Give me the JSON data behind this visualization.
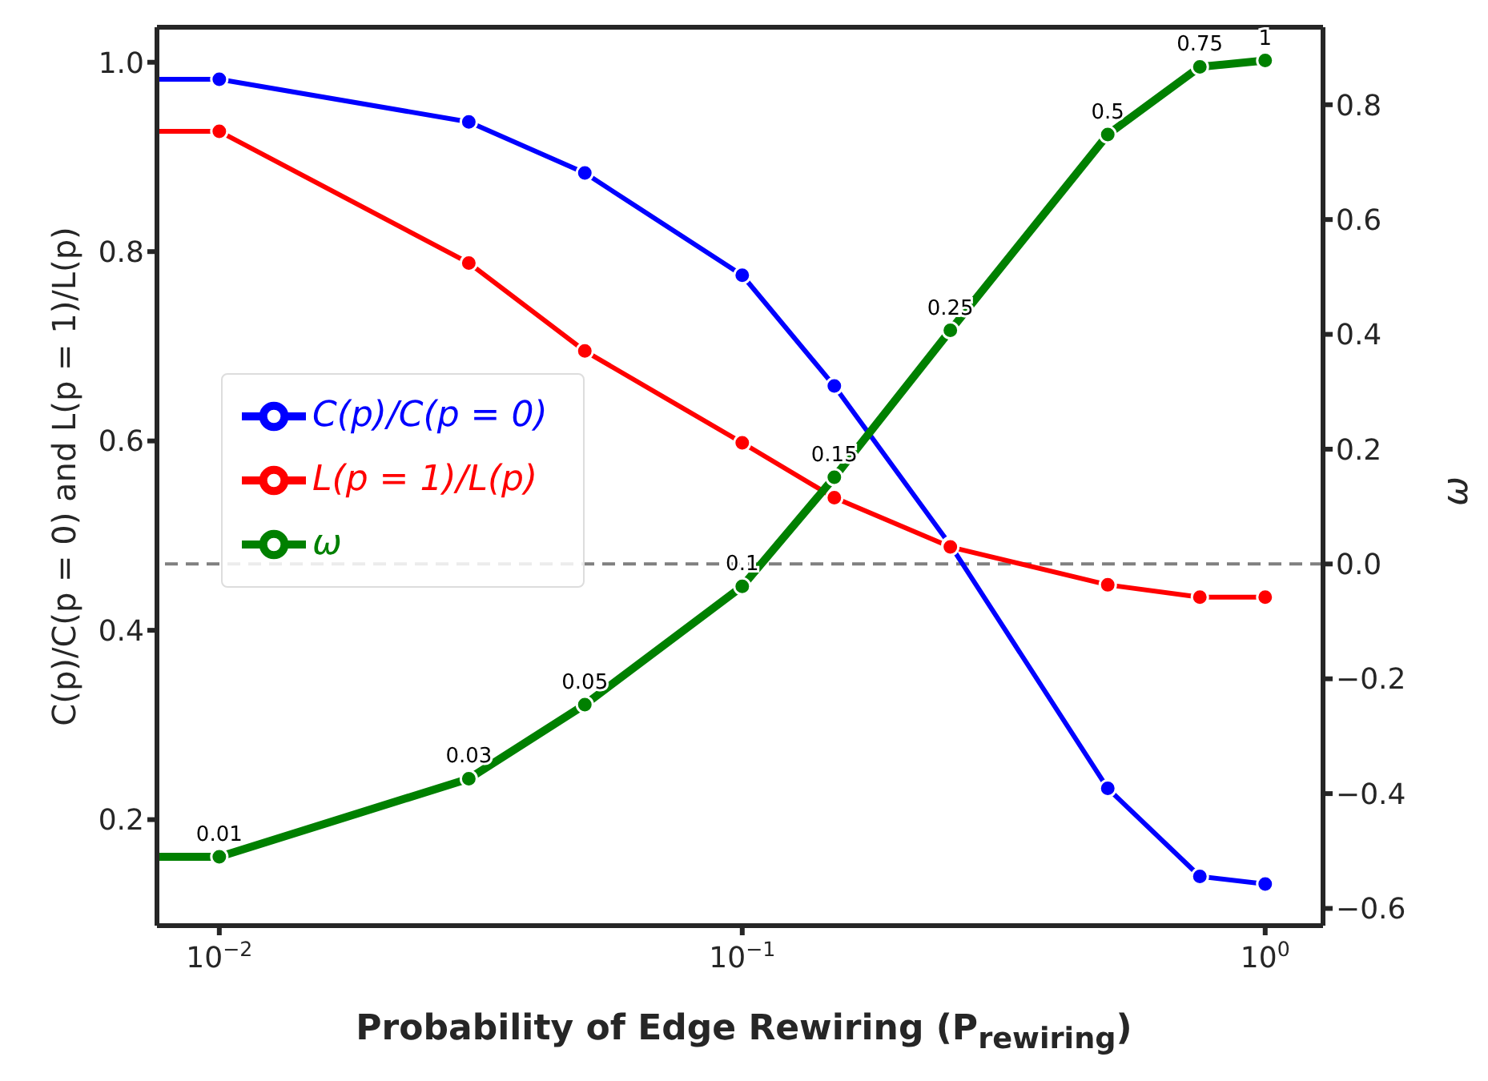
{
  "chart_data": {
    "type": "line",
    "xlabel": "Probability of Edge Rewiring (P$_{rewiring}$)",
    "ylabel": "C(p)/C(p = 0) and L(p = 1)/L(p)",
    "y2label": "ω",
    "x": [
      0.0076,
      0.01,
      0.03,
      0.05,
      0.1,
      0.15,
      0.25,
      0.5,
      0.75,
      1
    ],
    "series": [
      {
        "name": "C(p)/C(p = 0)",
        "color": "#0000ff",
        "values": [
          0.982,
          0.982,
          0.937,
          0.883,
          0.775,
          0.658,
          0.49,
          0.233,
          0.14,
          0.132
        ]
      },
      {
        "name": "L(p = 1)/L(p)",
        "color": "#ff0000",
        "values": [
          0.927,
          0.927,
          0.788,
          0.695,
          0.598,
          0.54,
          0.488,
          0.448,
          0.435,
          0.435
        ]
      },
      {
        "name": "ω",
        "color": "#008000",
        "axis": "y2",
        "values": [
          -0.51,
          -0.51,
          -0.374,
          -0.245,
          -0.039,
          0.151,
          0.407,
          0.748,
          0.866,
          0.877
        ]
      }
    ],
    "annotations": [
      "0.01",
      "0.03",
      "0.05",
      "0.1",
      "0.15",
      "0.25",
      "0.5",
      "0.75",
      "1"
    ],
    "log": "x",
    "xlim": [
      0.0076,
      1.29
    ],
    "xticks": [
      {
        "value": 0.01,
        "label": "10$^{−2}$"
      },
      {
        "value": 0.1,
        "label": "10$^{−1}$"
      },
      {
        "value": 1,
        "label": "10$^{0}$"
      }
    ],
    "ylim": [
      0.088,
      1.037
    ],
    "yticks": [
      0.2,
      0.4,
      0.6,
      0.8,
      {
        "value": 1,
        "label": "1.0"
      }
    ],
    "y2lim": [
      -0.63,
      0.935
    ],
    "y2ticks": [
      -0.6,
      -0.4,
      -0.2,
      {
        "value": 0,
        "label": "0.0"
      },
      0.2,
      0.4,
      0.6,
      0.8
    ],
    "ref_lines": [
      {
        "axis": "y2",
        "value": 0,
        "color": "#808080",
        "line_style": "dashed"
      }
    ],
    "grid": false,
    "legend": "center left",
    "marker": "circle",
    "line_style": "solid"
  }
}
